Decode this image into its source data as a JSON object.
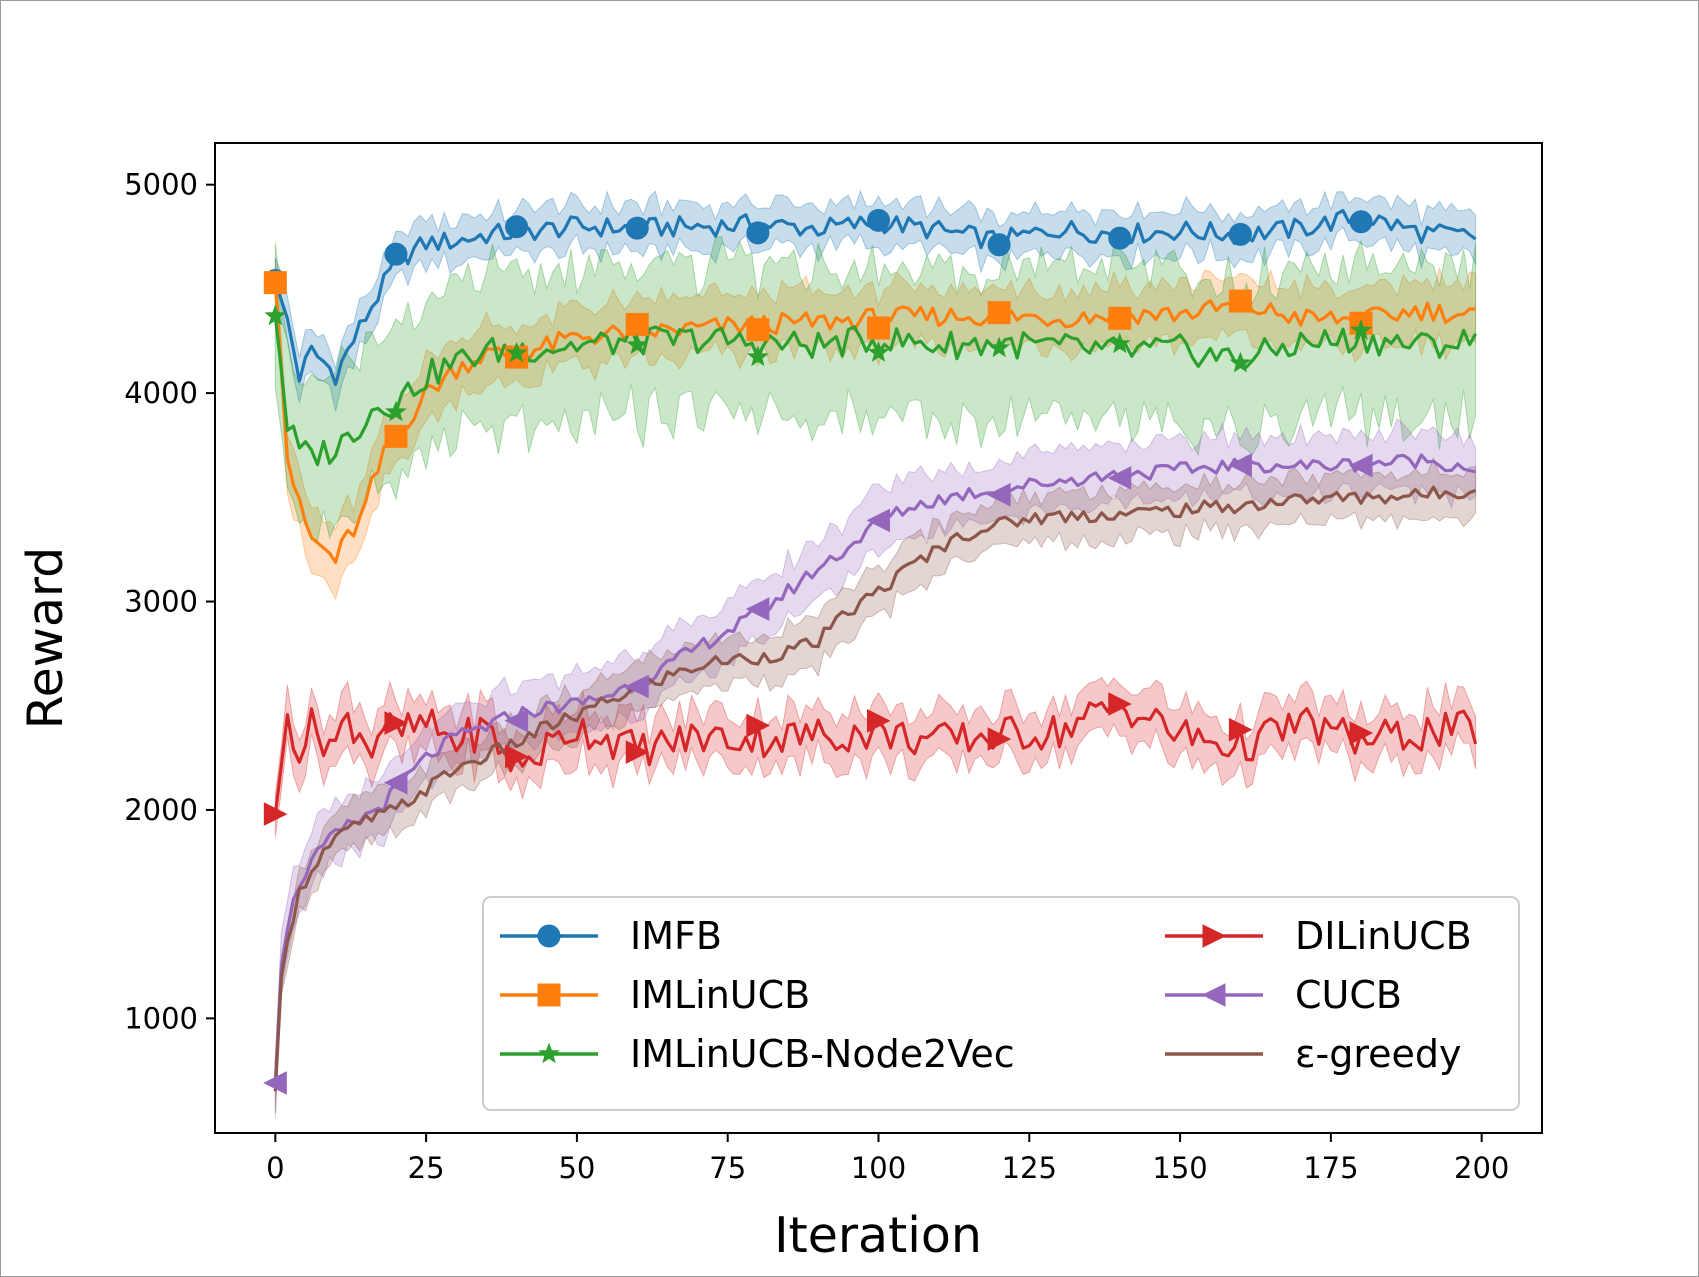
{
  "chart_data": {
    "type": "line",
    "title": "",
    "xlabel": "Iteration",
    "ylabel": "Reward",
    "xlim": [
      -10,
      210
    ],
    "ylim": [
      450,
      5200
    ],
    "xticks": [
      0,
      25,
      50,
      75,
      100,
      125,
      150,
      175,
      200
    ],
    "yticks": [
      1000,
      2000,
      3000,
      4000,
      5000
    ],
    "grid": false,
    "legend_position": "lower-right",
    "series": [
      {
        "name": "IMFB",
        "color": "#1f77b4",
        "marker": "circle",
        "shaded_band": true,
        "x": [
          0,
          2,
          4,
          6,
          8,
          10,
          12,
          14,
          16,
          18,
          20,
          25,
          30,
          35,
          40,
          50,
          60,
          70,
          80,
          90,
          100,
          110,
          120,
          130,
          140,
          150,
          160,
          170,
          180,
          190,
          199
        ],
        "y": [
          4540,
          4350,
          4080,
          4200,
          4150,
          4090,
          4200,
          4310,
          4420,
          4520,
          4630,
          4720,
          4730,
          4760,
          4770,
          4800,
          4790,
          4800,
          4810,
          4790,
          4820,
          4780,
          4730,
          4790,
          4760,
          4780,
          4760,
          4790,
          4850,
          4770,
          4750
        ],
        "band_halfwidth": 110
      },
      {
        "name": "IMLinUCB",
        "color": "#ff7f0e",
        "marker": "square",
        "shaded_band": true,
        "x": [
          0,
          2,
          4,
          6,
          8,
          10,
          12,
          14,
          16,
          18,
          20,
          25,
          30,
          35,
          40,
          50,
          60,
          70,
          80,
          90,
          100,
          110,
          120,
          130,
          140,
          150,
          160,
          170,
          180,
          190,
          199
        ],
        "y": [
          4530,
          3700,
          3450,
          3300,
          3250,
          3200,
          3310,
          3380,
          3550,
          3700,
          3790,
          4000,
          4120,
          4190,
          4180,
          4270,
          4290,
          4310,
          4330,
          4340,
          4360,
          4370,
          4370,
          4360,
          4380,
          4380,
          4420,
          4360,
          4350,
          4400,
          4370
        ],
        "band_halfwidth": 150
      },
      {
        "name": "IMLinUCB-Node2Vec",
        "color": "#2ca02c",
        "marker": "star",
        "shaded_band": true,
        "x": [
          0,
          2,
          4,
          6,
          8,
          10,
          12,
          14,
          16,
          18,
          20,
          25,
          30,
          35,
          40,
          50,
          60,
          70,
          80,
          90,
          100,
          110,
          120,
          130,
          140,
          150,
          160,
          170,
          180,
          190,
          199
        ],
        "y": [
          4370,
          3850,
          3720,
          3700,
          3720,
          3730,
          3790,
          3850,
          3920,
          3950,
          3960,
          4080,
          4150,
          4200,
          4210,
          4230,
          4250,
          4260,
          4240,
          4230,
          4260,
          4230,
          4240,
          4220,
          4200,
          4210,
          4160,
          4240,
          4260,
          4230,
          4250
        ],
        "band_halfwidth": 380
      },
      {
        "name": "DILinUCB",
        "color": "#d62728",
        "marker": "triangle-right",
        "shaded_band": true,
        "x": [
          0,
          2,
          4,
          6,
          8,
          10,
          12,
          14,
          16,
          18,
          20,
          25,
          30,
          35,
          40,
          50,
          60,
          70,
          80,
          90,
          100,
          110,
          120,
          130,
          140,
          150,
          160,
          170,
          180,
          190,
          199
        ],
        "y": [
          1980,
          2450,
          2300,
          2400,
          2350,
          2320,
          2440,
          2380,
          2300,
          2420,
          2360,
          2410,
          2330,
          2390,
          2200,
          2400,
          2290,
          2350,
          2340,
          2360,
          2370,
          2330,
          2360,
          2380,
          2510,
          2360,
          2300,
          2420,
          2330,
          2370,
          2390
        ],
        "band_halfwidth": 130
      },
      {
        "name": "CUCB",
        "color": "#9467bd",
        "marker": "triangle-left",
        "shaded_band": true,
        "x": [
          0,
          1,
          2,
          4,
          6,
          8,
          10,
          12,
          15,
          18,
          20,
          25,
          30,
          35,
          40,
          45,
          50,
          55,
          60,
          65,
          70,
          75,
          80,
          85,
          90,
          95,
          100,
          105,
          110,
          115,
          120,
          125,
          130,
          140,
          150,
          160,
          170,
          180,
          190,
          199
        ],
        "y": [
          690,
          1250,
          1450,
          1650,
          1750,
          1820,
          1880,
          1920,
          1970,
          2030,
          2100,
          2250,
          2350,
          2400,
          2460,
          2490,
          2510,
          2550,
          2610,
          2690,
          2780,
          2860,
          2940,
          3050,
          3160,
          3260,
          3380,
          3450,
          3490,
          3520,
          3540,
          3560,
          3580,
          3610,
          3630,
          3660,
          3650,
          3660,
          3680,
          3640
        ],
        "band_halfwidth": 150
      },
      {
        "name": "ε-greedy",
        "color": "#8c564b",
        "marker": "none",
        "shaded_band": true,
        "x": [
          0,
          1,
          2,
          4,
          6,
          8,
          10,
          12,
          15,
          18,
          20,
          25,
          30,
          35,
          40,
          45,
          50,
          55,
          60,
          65,
          70,
          75,
          80,
          85,
          90,
          95,
          100,
          105,
          110,
          115,
          120,
          125,
          130,
          140,
          150,
          160,
          170,
          180,
          190,
          199
        ],
        "y": [
          650,
          1200,
          1400,
          1600,
          1720,
          1800,
          1860,
          1900,
          1950,
          1980,
          2000,
          2100,
          2200,
          2260,
          2320,
          2400,
          2450,
          2520,
          2580,
          2640,
          2690,
          2720,
          2730,
          2760,
          2810,
          2950,
          3050,
          3160,
          3260,
          3330,
          3370,
          3400,
          3410,
          3420,
          3440,
          3460,
          3490,
          3500,
          3510,
          3540
        ],
        "band_halfwidth": 120
      }
    ]
  }
}
